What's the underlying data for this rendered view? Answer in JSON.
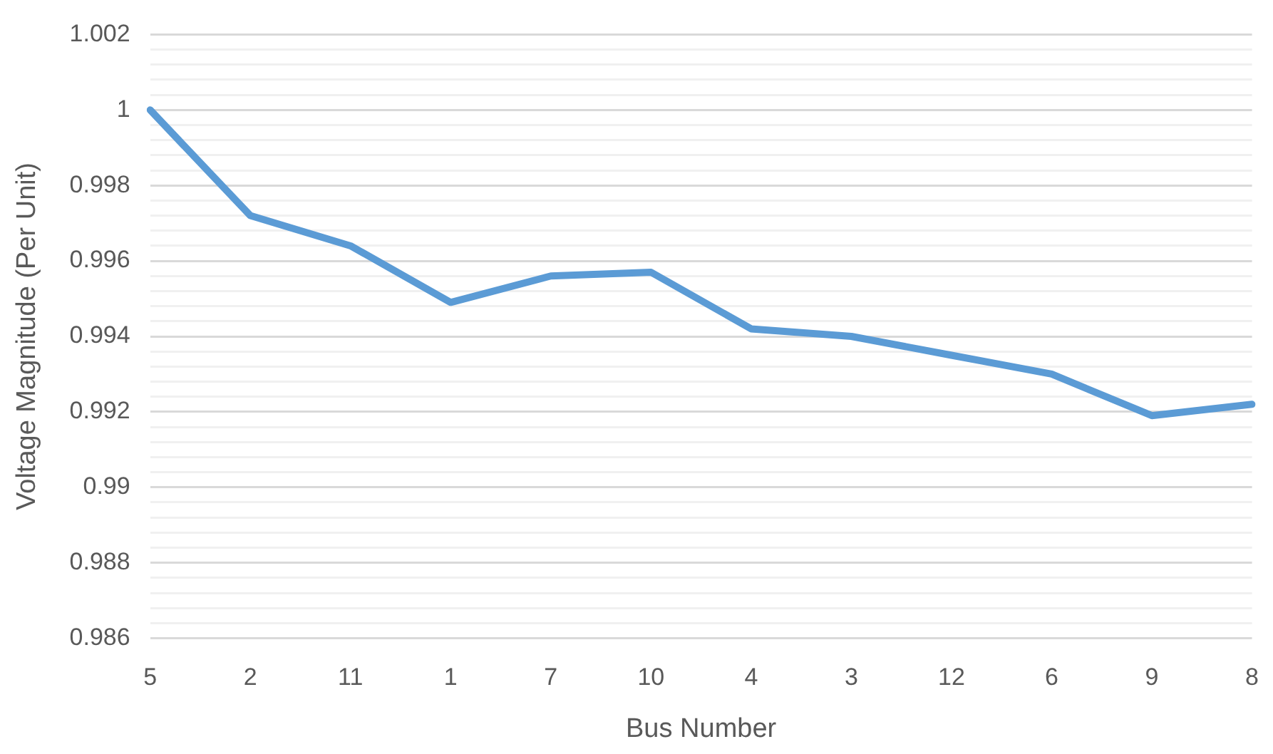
{
  "chart_data": {
    "type": "line",
    "xlabel": "Bus Number",
    "ylabel": "Voltage Magnitude (Per Unit)",
    "categories": [
      "5",
      "2",
      "11",
      "1",
      "7",
      "10",
      "4",
      "3",
      "12",
      "6",
      "9",
      "8"
    ],
    "series": [
      {
        "color": "#5b9bd5",
        "values": [
          1.0,
          0.9972,
          0.9964,
          0.9949,
          0.9956,
          0.9957,
          0.9942,
          0.994,
          0.9935,
          0.993,
          0.9919,
          0.9922
        ]
      }
    ],
    "ylim": [
      0.986,
      1.002
    ],
    "yticks": [
      0.986,
      {
        "value": 0.9864,
        "label": null
      },
      {
        "value": 0.9868,
        "label": null
      },
      {
        "value": 0.9872,
        "label": null
      },
      {
        "value": 0.9876,
        "label": null
      },
      0.988,
      {
        "value": 0.9884,
        "label": null
      },
      {
        "value": 0.9888,
        "label": null
      },
      {
        "value": 0.9892,
        "label": null
      },
      {
        "value": 0.9896,
        "label": null
      },
      0.99,
      {
        "value": 0.9904,
        "label": null
      },
      {
        "value": 0.9908,
        "label": null
      },
      {
        "value": 0.9912,
        "label": null
      },
      {
        "value": 0.9916,
        "label": null
      },
      0.992,
      {
        "value": 0.9924,
        "label": null
      },
      {
        "value": 0.9928,
        "label": null
      },
      {
        "value": 0.9932,
        "label": null
      },
      {
        "value": 0.9936,
        "label": null
      },
      0.994,
      {
        "value": 0.9944,
        "label": null
      },
      {
        "value": 0.9948,
        "label": null
      },
      {
        "value": 0.9952,
        "label": null
      },
      {
        "value": 0.9956,
        "label": null
      },
      0.996,
      {
        "value": 0.9964,
        "label": null
      },
      {
        "value": 0.9968,
        "label": null
      },
      {
        "value": 0.9972,
        "label": null
      },
      {
        "value": 0.9976,
        "label": null
      },
      0.998,
      {
        "value": 0.9984,
        "label": null
      },
      {
        "value": 0.9988,
        "label": null
      },
      {
        "value": 0.9992,
        "label": null
      },
      {
        "value": 0.9996,
        "label": null
      },
      1,
      {
        "value": 1.0004,
        "label": null
      },
      {
        "value": 1.0008,
        "label": null
      },
      {
        "value": 1.0012,
        "label": null
      },
      {
        "value": 1.0016,
        "label": null
      },
      1.002
    ],
    "grid": "y",
    "legend": false,
    "marker": "none",
    "line_style": "solid"
  }
}
